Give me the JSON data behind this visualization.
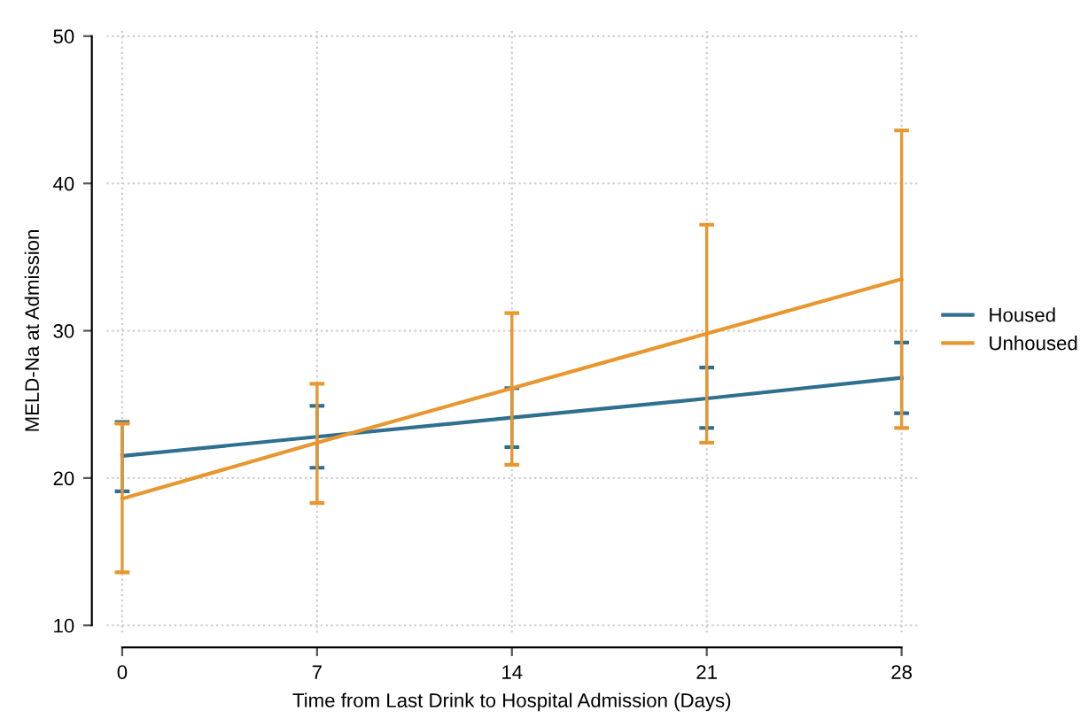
{
  "chart_data": {
    "type": "line",
    "xlabel": "Time from Last Drink to Hospital Admission (Days)",
    "ylabel": "MELD-Na at Admission",
    "x": [
      0,
      7,
      14,
      21,
      28
    ],
    "series": [
      {
        "name": "Housed",
        "color": "#2f6f8f",
        "values": [
          21.5,
          22.8,
          24.1,
          25.4,
          26.8
        ],
        "errors": [
          [
            19.1,
            23.8
          ],
          [
            20.7,
            24.9
          ],
          [
            22.1,
            26.1
          ],
          [
            23.4,
            27.5
          ],
          [
            24.4,
            29.2
          ]
        ]
      },
      {
        "name": "Unhoused",
        "color": "#e8962e",
        "values": [
          18.6,
          22.4,
          26.1,
          29.8,
          33.5
        ],
        "errors": [
          [
            13.6,
            23.7
          ],
          [
            18.3,
            26.4
          ],
          [
            20.9,
            31.2
          ],
          [
            22.4,
            37.2
          ],
          [
            23.4,
            43.6
          ]
        ]
      }
    ],
    "xlim": [
      0,
      28
    ],
    "ylim": [
      10,
      50
    ],
    "xticks": [
      0,
      7,
      14,
      21,
      28
    ],
    "yticks": [
      10,
      20,
      30,
      40,
      50
    ],
    "grid": true,
    "legend": "right",
    "marker": "none",
    "line_style": "solid"
  }
}
